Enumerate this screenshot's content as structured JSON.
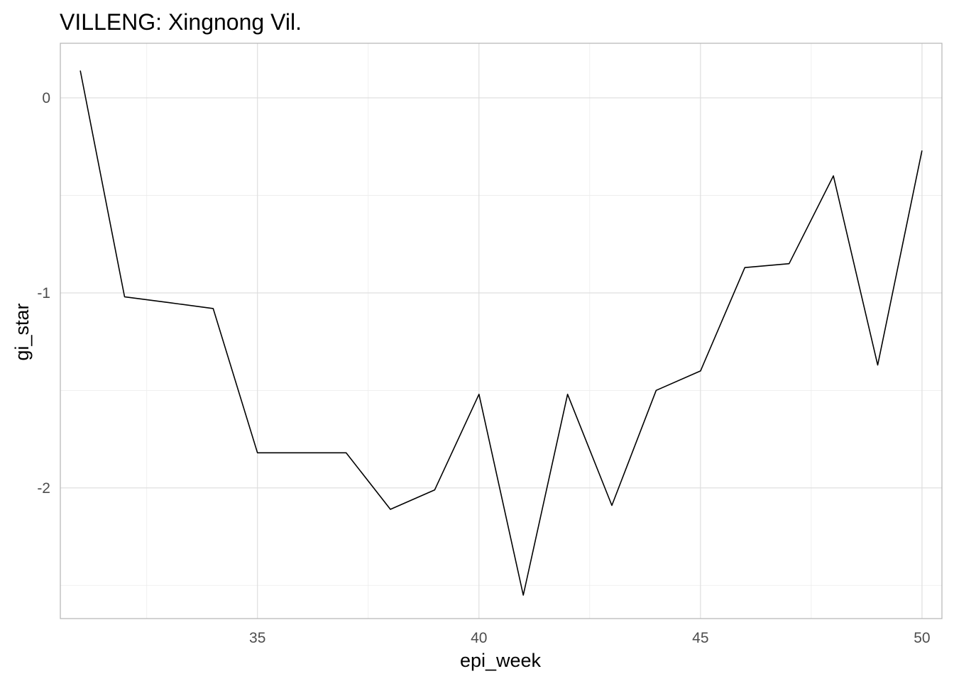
{
  "chart_data": {
    "type": "line",
    "title": "VILLENG: Xingnong Vil.",
    "xlabel": "epi_week",
    "ylabel": "gi_star",
    "xlim": [
      30.55,
      50.45
    ],
    "ylim": [
      -2.67,
      0.28
    ],
    "x_ticks": [
      35,
      40,
      45,
      50
    ],
    "x_tick_labels": [
      "35",
      "40",
      "45",
      "50"
    ],
    "y_ticks": [
      0,
      -1,
      -2
    ],
    "y_tick_labels": [
      "0",
      "-1",
      "-2"
    ],
    "grid": true,
    "series": [
      {
        "x": [
          31,
          32,
          33,
          34,
          35,
          36,
          37,
          38,
          39,
          40,
          41,
          42,
          43,
          44,
          45,
          46,
          47,
          48,
          49,
          50
        ],
        "values": [
          0.14,
          -1.02,
          -1.05,
          -1.08,
          -1.82,
          -1.82,
          -1.82,
          -2.11,
          -2.01,
          -1.52,
          -2.55,
          -1.52,
          -2.09,
          -1.5,
          -1.4,
          -0.87,
          -0.85,
          -0.4,
          -1.37,
          -0.27
        ]
      }
    ]
  }
}
